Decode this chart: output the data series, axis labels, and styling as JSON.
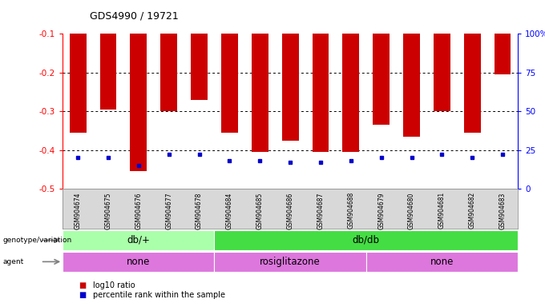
{
  "title": "GDS4990 / 19721",
  "samples": [
    "GSM904674",
    "GSM904675",
    "GSM904676",
    "GSM904677",
    "GSM904678",
    "GSM904684",
    "GSM904685",
    "GSM904686",
    "GSM904687",
    "GSM904688",
    "GSM904679",
    "GSM904680",
    "GSM904681",
    "GSM904682",
    "GSM904683"
  ],
  "log10_ratio": [
    -0.355,
    -0.295,
    -0.455,
    -0.3,
    -0.27,
    -0.355,
    -0.405,
    -0.375,
    -0.405,
    -0.405,
    -0.335,
    -0.365,
    -0.3,
    -0.355,
    -0.205
  ],
  "percentile_rank": [
    20,
    20,
    15,
    22,
    22,
    18,
    18,
    17,
    17,
    18,
    20,
    20,
    22,
    20,
    22
  ],
  "ylim_left": [
    -0.5,
    -0.1
  ],
  "ylim_right": [
    0,
    100
  ],
  "yticks_left": [
    -0.5,
    -0.4,
    -0.3,
    -0.2,
    -0.1
  ],
  "yticks_right": [
    0,
    25,
    50,
    75,
    100
  ],
  "genotype_groups": [
    {
      "label": "db/+",
      "start": 0,
      "end": 5,
      "color": "#aaffaa"
    },
    {
      "label": "db/db",
      "start": 5,
      "end": 15,
      "color": "#44dd44"
    }
  ],
  "agent_groups": [
    {
      "label": "none",
      "start": 0,
      "end": 5
    },
    {
      "label": "rosiglitazone",
      "start": 5,
      "end": 10
    },
    {
      "label": "none",
      "start": 10,
      "end": 15
    }
  ],
  "agent_color": "#dd77dd",
  "bar_color": "#cc0000",
  "dot_color": "#0000cc",
  "background_color": "#ffffff",
  "tick_label_gray": "#d3d3d3",
  "legend_items": [
    {
      "label": "log10 ratio",
      "color": "#cc0000"
    },
    {
      "label": "percentile rank within the sample",
      "color": "#0000cc"
    }
  ]
}
